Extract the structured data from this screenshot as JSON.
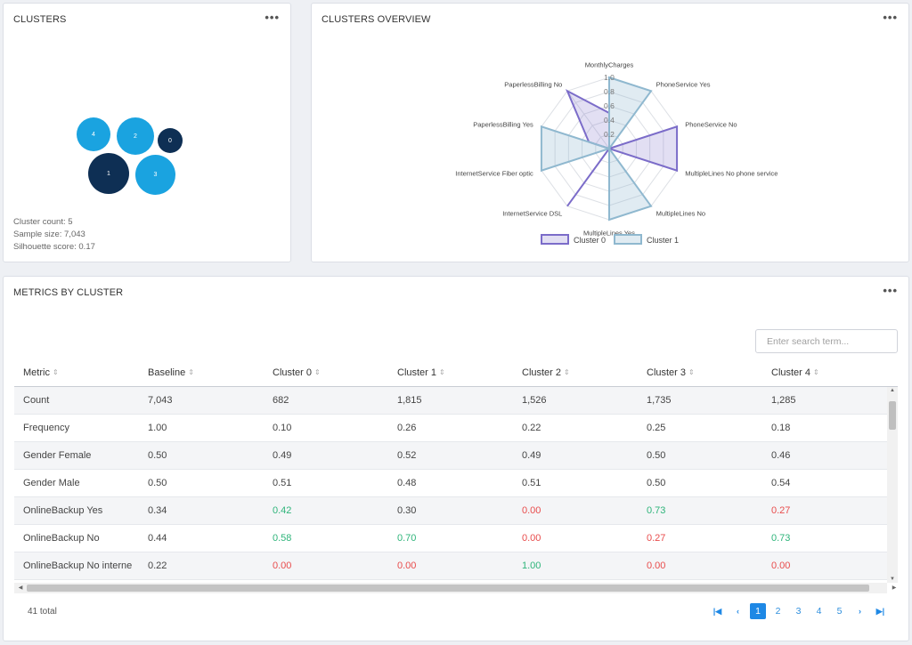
{
  "clusters_card": {
    "title": "CLUSTERS",
    "menu": "•••",
    "bubbles": [
      {
        "label": "4",
        "color": "#1aa3e0"
      },
      {
        "label": "2",
        "color": "#1aa3e0"
      },
      {
        "label": "0",
        "color": "#0e2f54"
      },
      {
        "label": "1",
        "color": "#0e2f54"
      },
      {
        "label": "3",
        "color": "#1aa3e0"
      }
    ],
    "stats": {
      "count": "Cluster count: 5",
      "sample": "Sample size: 7,043",
      "silhouette": "Silhouette score: 0.17"
    }
  },
  "overview_card": {
    "title": "CLUSTERS OVERVIEW",
    "menu": "•••"
  },
  "chart_data": {
    "type": "radar",
    "axes": [
      "MonthlyCharges",
      "PhoneService Yes",
      "PhoneService No",
      "MultipleLines No phone service",
      "MultipleLines No",
      "MultipleLines Yes",
      "InternetService DSL",
      "InternetService Fiber optic",
      "PaperlessBilling Yes",
      "PaperlessBilling No"
    ],
    "radial_ticks": [
      "0.2",
      "0.4",
      "0.6",
      "0.8",
      "1.0"
    ],
    "rlim": [
      0,
      1
    ],
    "series": [
      {
        "name": "Cluster 0",
        "color": "#7b6cc9",
        "values": [
          0.5,
          0.0,
          1.0,
          1.0,
          0.0,
          0.0,
          1.0,
          0.0,
          0.3,
          1.0
        ]
      },
      {
        "name": "Cluster 1",
        "color": "#8fb8cf",
        "values": [
          1.0,
          1.0,
          0.0,
          0.0,
          1.0,
          1.0,
          0.0,
          1.0,
          1.0,
          0.0
        ]
      }
    ],
    "legend_position": "bottom"
  },
  "metrics_card": {
    "title": "METRICS BY CLUSTER",
    "menu": "•••",
    "search_placeholder": "Enter search term...",
    "columns": [
      "Metric",
      "Baseline",
      "Cluster 0",
      "Cluster 1",
      "Cluster 2",
      "Cluster 3",
      "Cluster 4"
    ],
    "rows": [
      {
        "cells": [
          "Count",
          "7,043",
          "682",
          "1,815",
          "1,526",
          "1,735",
          "1,285"
        ],
        "tones": [
          "",
          "",
          "",
          "",
          "",
          "",
          ""
        ]
      },
      {
        "cells": [
          "Frequency",
          "1.00",
          "0.10",
          "0.26",
          "0.22",
          "0.25",
          "0.18"
        ],
        "tones": [
          "",
          "",
          "",
          "",
          "",
          "",
          ""
        ]
      },
      {
        "cells": [
          "Gender Female",
          "0.50",
          "0.49",
          "0.52",
          "0.49",
          "0.50",
          "0.46"
        ],
        "tones": [
          "",
          "",
          "",
          "",
          "",
          "",
          ""
        ]
      },
      {
        "cells": [
          "Gender Male",
          "0.50",
          "0.51",
          "0.48",
          "0.51",
          "0.50",
          "0.54"
        ],
        "tones": [
          "",
          "",
          "",
          "",
          "",
          "",
          ""
        ]
      },
      {
        "cells": [
          "OnlineBackup Yes",
          "0.34",
          "0.42",
          "0.30",
          "0.00",
          "0.73",
          "0.27"
        ],
        "tones": [
          "",
          "",
          "pos",
          "",
          "neg",
          "pos",
          "neg"
        ]
      },
      {
        "cells": [
          "OnlineBackup No",
          "0.44",
          "0.58",
          "0.70",
          "0.00",
          "0.27",
          "0.73"
        ],
        "tones": [
          "",
          "",
          "pos",
          "pos",
          "neg",
          "neg",
          "pos"
        ]
      },
      {
        "cells": [
          "OnlineBackup No interne",
          "0.22",
          "0.00",
          "0.00",
          "1.00",
          "0.00",
          "0.00"
        ],
        "tones": [
          "",
          "",
          "neg",
          "neg",
          "pos",
          "neg",
          "neg"
        ]
      }
    ],
    "total": "41 total",
    "pages": [
      "1",
      "2",
      "3",
      "4",
      "5"
    ],
    "active_page": "1",
    "pager_icons": [
      "first-page-icon",
      "prev-page-icon",
      "next-page-icon",
      "last-page-icon"
    ]
  }
}
